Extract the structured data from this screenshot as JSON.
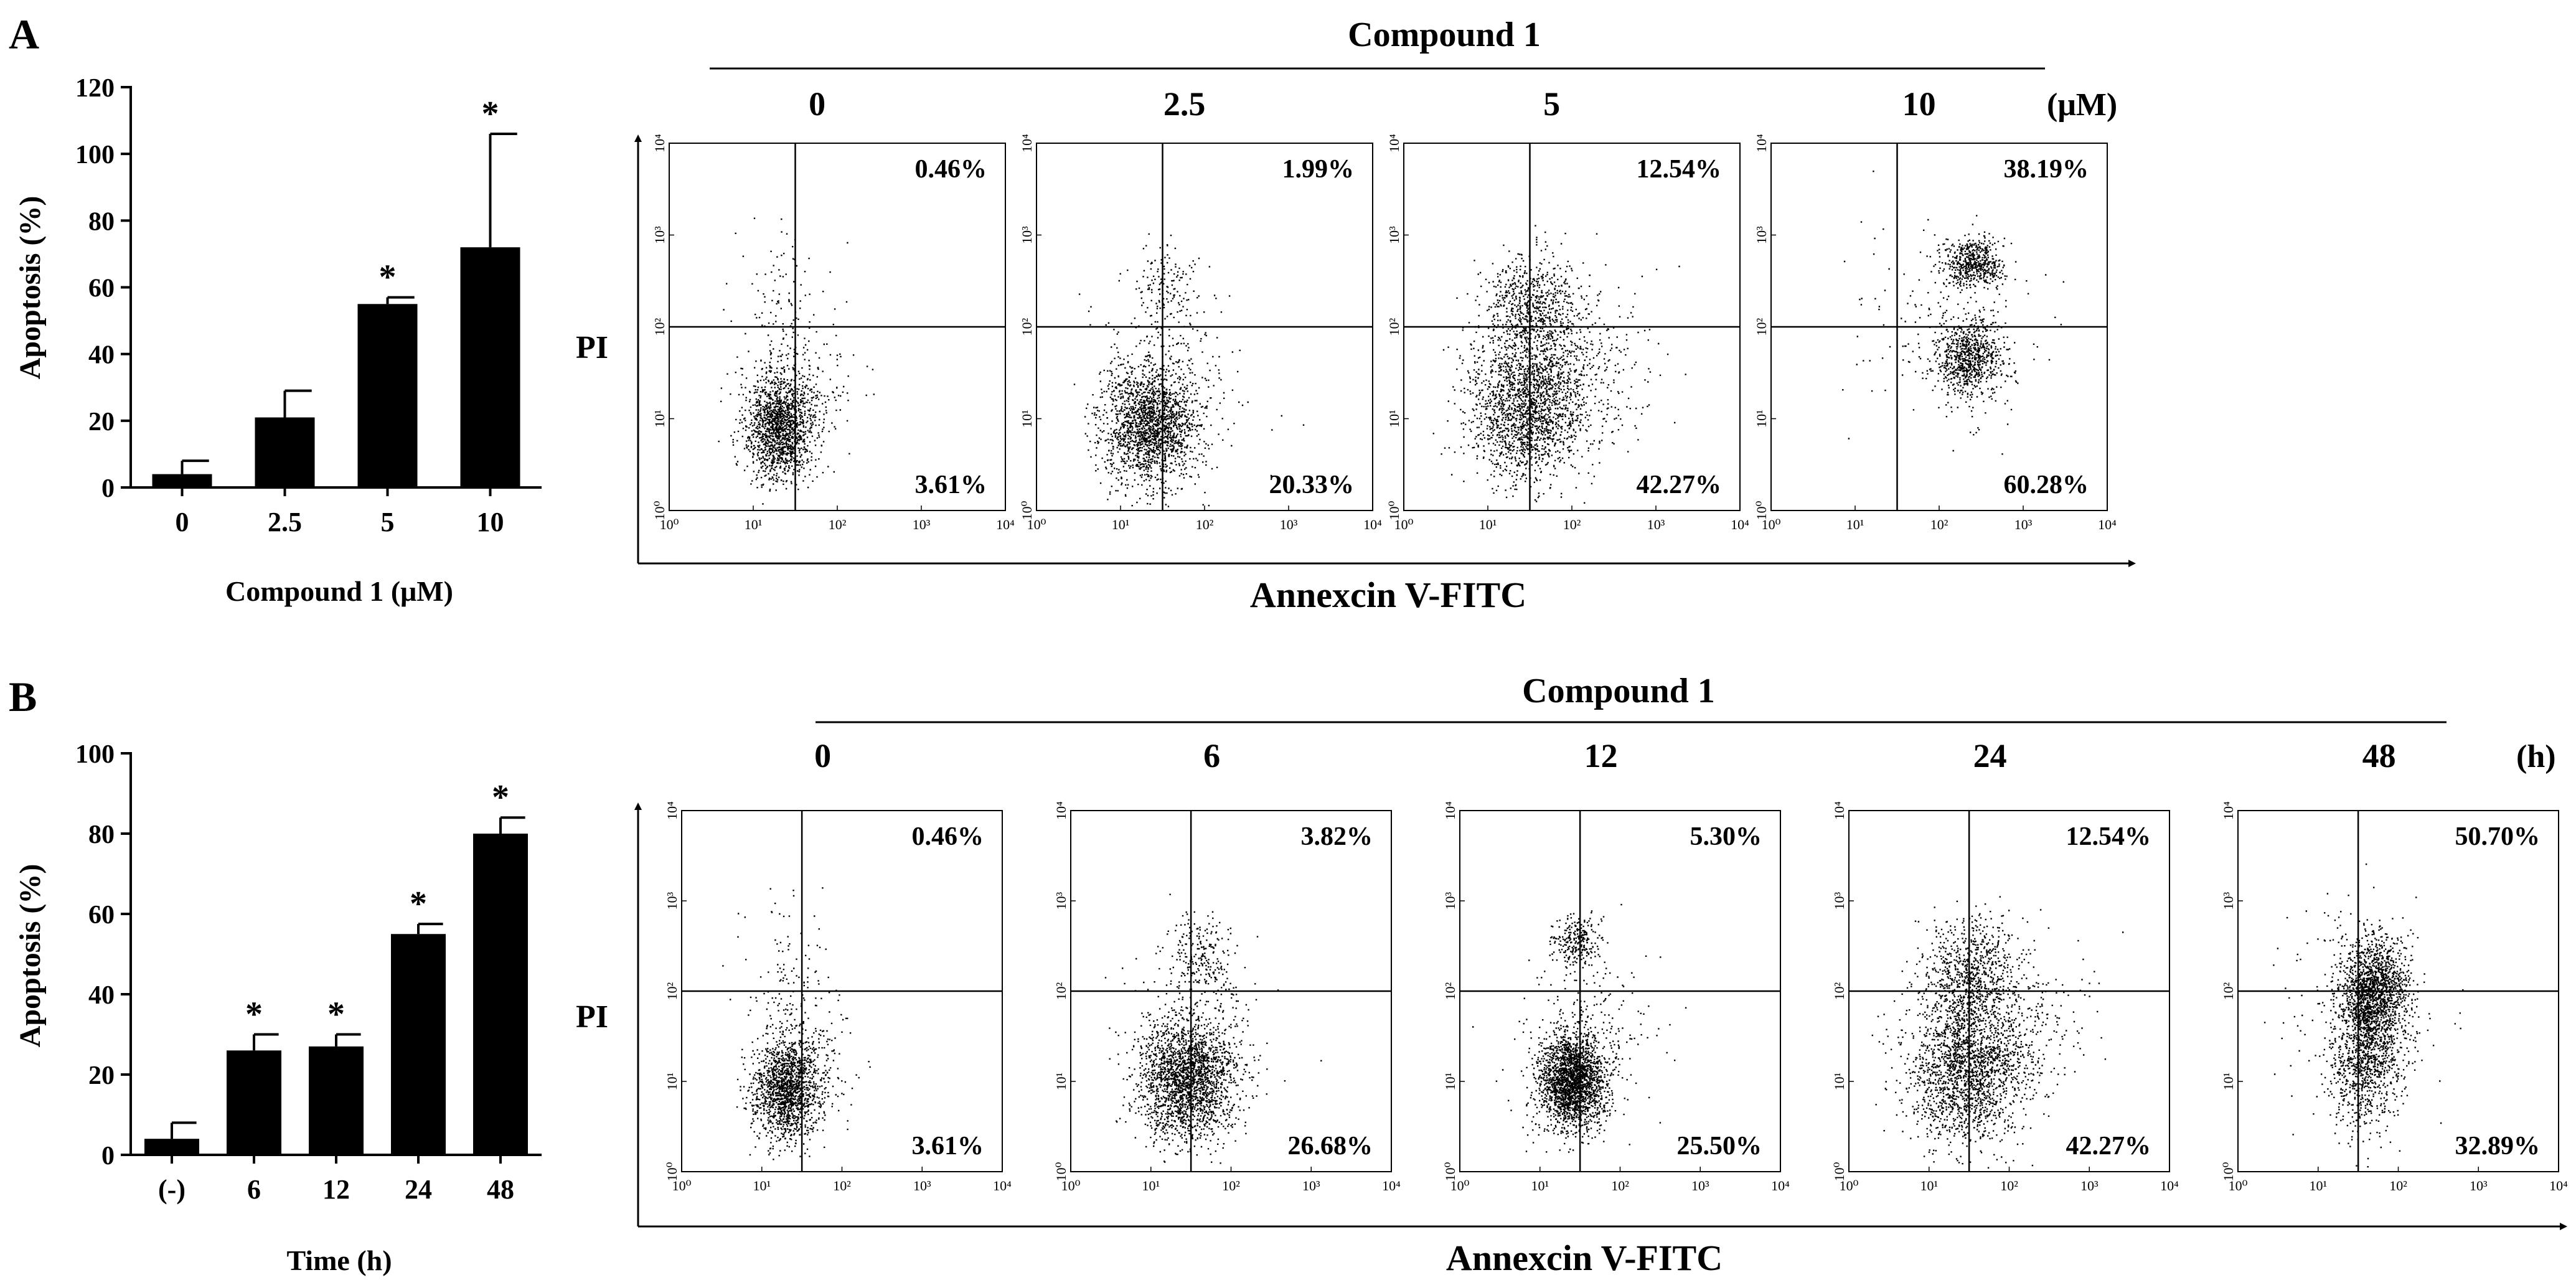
{
  "figure": {
    "panel_a_letter": "A",
    "panel_b_letter": "B",
    "compound_label": "Compound 1",
    "unit_a": "(μM)",
    "unit_b": "(h)",
    "pi_label": "PI",
    "annexin_label": "Annexcin V-FITC"
  },
  "chart_data": [
    {
      "id": "A-bar",
      "type": "bar",
      "title": "",
      "xlabel": "Compound 1 (μM)",
      "ylabel": "Apoptosis (%)",
      "categories": [
        "0",
        "2.5",
        "5",
        "10"
      ],
      "values": [
        4,
        21,
        55,
        72
      ],
      "errors": [
        4,
        8,
        2,
        34
      ],
      "significance": [
        "",
        "",
        "*",
        "*"
      ],
      "ylim": [
        0,
        120
      ],
      "yticks": [
        0,
        20,
        40,
        60,
        80,
        100,
        120
      ],
      "grid": false,
      "legend": "none"
    },
    {
      "id": "A-flow",
      "type": "scatter",
      "title": "Compound 1",
      "xlabel": "Annexcin V-FITC",
      "ylabel": "PI",
      "unit": "(μM)",
      "scale": "log",
      "axis_ticks": [
        "10⁰",
        "10¹",
        "10²",
        "10³",
        "10⁴"
      ],
      "gate_x": 1.5,
      "gate_y": 2,
      "panels": [
        {
          "condition": "0",
          "upper_right": "0.46%",
          "lower_right": "3.61%",
          "clusters": [
            {
              "cx": 1.3,
              "cy": 0.9,
              "sx": 0.2,
              "sy": 0.28,
              "n": 1400
            },
            {
              "cx": 1.55,
              "cy": 1.2,
              "sx": 0.3,
              "sy": 0.35,
              "n": 250
            },
            {
              "cx": 1.35,
              "cy": 2.1,
              "sx": 0.3,
              "sy": 0.45,
              "n": 120
            }
          ]
        },
        {
          "condition": "2.5",
          "upper_right": "1.99%",
          "lower_right": "20.33%",
          "clusters": [
            {
              "cx": 1.35,
              "cy": 0.95,
              "sx": 0.28,
              "sy": 0.32,
              "n": 1800
            },
            {
              "cx": 1.55,
              "cy": 2.45,
              "sx": 0.18,
              "sy": 0.2,
              "n": 130
            },
            {
              "cx": 1.5,
              "cy": 1.5,
              "sx": 0.45,
              "sy": 0.55,
              "n": 250
            }
          ]
        },
        {
          "condition": "5",
          "upper_right": "12.54%",
          "lower_right": "42.27%",
          "clusters": [
            {
              "cx": 1.45,
              "cy": 1.1,
              "sx": 0.35,
              "sy": 0.4,
              "n": 1700
            },
            {
              "cx": 1.5,
              "cy": 2.2,
              "sx": 0.3,
              "sy": 0.3,
              "n": 700
            },
            {
              "cx": 1.9,
              "cy": 1.6,
              "sx": 0.45,
              "sy": 0.45,
              "n": 500
            }
          ]
        },
        {
          "condition": "10",
          "upper_right": "38.19%",
          "lower_right": "60.28%",
          "clusters": [
            {
              "cx": 2.4,
              "cy": 2.7,
              "sx": 0.18,
              "sy": 0.13,
              "n": 550
            },
            {
              "cx": 2.35,
              "cy": 1.65,
              "sx": 0.2,
              "sy": 0.22,
              "n": 800
            },
            {
              "cx": 2.0,
              "cy": 2.0,
              "sx": 0.55,
              "sy": 0.55,
              "n": 160
            }
          ]
        }
      ]
    },
    {
      "id": "B-bar",
      "type": "bar",
      "title": "",
      "xlabel": "Time (h)",
      "ylabel": "Apoptosis (%)",
      "categories": [
        "(-)",
        "6",
        "12",
        "24",
        "48"
      ],
      "values": [
        4,
        26,
        27,
        55,
        80
      ],
      "errors": [
        4,
        4,
        3,
        2.5,
        4
      ],
      "significance": [
        "",
        "*",
        "*",
        "*",
        "*"
      ],
      "ylim": [
        0,
        100
      ],
      "yticks": [
        0,
        20,
        40,
        60,
        80,
        100
      ],
      "grid": false,
      "legend": "none"
    },
    {
      "id": "B-flow",
      "type": "scatter",
      "title": "Compound 1",
      "xlabel": "Annexcin V-FITC",
      "ylabel": "PI",
      "unit": "(h)",
      "scale": "log",
      "axis_ticks": [
        "10⁰",
        "10¹",
        "10²",
        "10³",
        "10⁴"
      ],
      "gate_x": 1.5,
      "gate_y": 2,
      "panels": [
        {
          "condition": "0",
          "upper_right": "0.46%",
          "lower_right": "3.61%",
          "clusters": [
            {
              "cx": 1.3,
              "cy": 0.9,
              "sx": 0.2,
              "sy": 0.28,
              "n": 1400
            },
            {
              "cx": 1.55,
              "cy": 1.2,
              "sx": 0.3,
              "sy": 0.35,
              "n": 250
            },
            {
              "cx": 1.35,
              "cy": 2.1,
              "sx": 0.3,
              "sy": 0.45,
              "n": 120
            }
          ]
        },
        {
          "condition": "6",
          "upper_right": "3.82%",
          "lower_right": "26.68%",
          "clusters": [
            {
              "cx": 1.45,
              "cy": 1.0,
              "sx": 0.3,
              "sy": 0.33,
              "n": 2000
            },
            {
              "cx": 1.6,
              "cy": 2.4,
              "sx": 0.2,
              "sy": 0.2,
              "n": 200
            },
            {
              "cx": 1.6,
              "cy": 1.5,
              "sx": 0.45,
              "sy": 0.5,
              "n": 300
            }
          ]
        },
        {
          "condition": "12",
          "upper_right": "5.30%",
          "lower_right": "25.50%",
          "clusters": [
            {
              "cx": 1.4,
              "cy": 1.0,
              "sx": 0.2,
              "sy": 0.25,
              "n": 2100
            },
            {
              "cx": 1.45,
              "cy": 2.55,
              "sx": 0.15,
              "sy": 0.15,
              "n": 250
            },
            {
              "cx": 1.6,
              "cy": 1.5,
              "sx": 0.45,
              "sy": 0.5,
              "n": 300
            }
          ]
        },
        {
          "condition": "24",
          "upper_right": "12.54%",
          "lower_right": "42.27%",
          "clusters": [
            {
              "cx": 1.45,
              "cy": 1.1,
              "sx": 0.35,
              "sy": 0.4,
              "n": 1700
            },
            {
              "cx": 1.5,
              "cy": 2.2,
              "sx": 0.3,
              "sy": 0.3,
              "n": 700
            },
            {
              "cx": 1.9,
              "cy": 1.6,
              "sx": 0.45,
              "sy": 0.45,
              "n": 500
            }
          ]
        },
        {
          "condition": "48",
          "upper_right": "50.70%",
          "lower_right": "32.89%",
          "clusters": [
            {
              "cx": 1.7,
              "cy": 2.0,
              "sx": 0.2,
              "sy": 0.3,
              "n": 1500
            },
            {
              "cx": 1.6,
              "cy": 1.2,
              "sx": 0.22,
              "sy": 0.35,
              "n": 800
            },
            {
              "cx": 1.5,
              "cy": 1.8,
              "sx": 0.45,
              "sy": 0.55,
              "n": 300
            }
          ]
        }
      ]
    }
  ]
}
